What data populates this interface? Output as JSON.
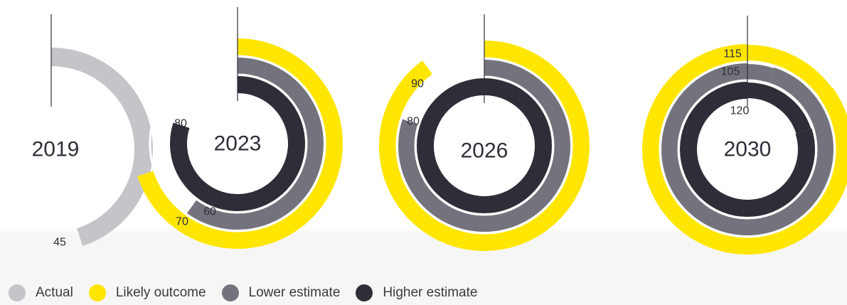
{
  "colors": {
    "actual": "#c4c4c9",
    "likely": "#ffe600",
    "lower": "#74737d",
    "higher": "#2e2e38",
    "text": "#2e2e38"
  },
  "legend": [
    {
      "label": "Actual",
      "color": "#c4c4c9"
    },
    {
      "label": "Likely outcome",
      "color": "#ffe600"
    },
    {
      "label": "Lower estimate",
      "color": "#74737d"
    },
    {
      "label": "Higher estimate",
      "color": "#2e2e38"
    }
  ],
  "chart_data": {
    "type": "radial-bar",
    "full_circle_value": 100,
    "series_names": [
      "Actual",
      "Likely outcome",
      "Lower estimate",
      "Higher estimate"
    ],
    "groups": [
      {
        "label": "2019",
        "rings": [
          {
            "series": "Actual",
            "value": 45,
            "label": "45"
          }
        ]
      },
      {
        "label": "2023",
        "rings": [
          {
            "series": "Likely outcome",
            "value": 70,
            "label": "70"
          },
          {
            "series": "Lower estimate",
            "value": 60,
            "label": "60"
          },
          {
            "series": "Higher estimate",
            "value": 80,
            "label": "80"
          }
        ]
      },
      {
        "label": "2026",
        "rings": [
          {
            "series": "Likely outcome",
            "value": 90,
            "label": "90"
          },
          {
            "series": "Lower estimate",
            "value": 80,
            "label": "80"
          },
          {
            "series": "Higher estimate",
            "value": 100,
            "label": "100"
          }
        ]
      },
      {
        "label": "2030",
        "rings": [
          {
            "series": "Likely outcome",
            "value": 115,
            "label": "115"
          },
          {
            "series": "Lower estimate",
            "value": 105,
            "label": "105"
          },
          {
            "series": "Higher estimate",
            "value": 120,
            "label": "120"
          }
        ]
      }
    ]
  }
}
